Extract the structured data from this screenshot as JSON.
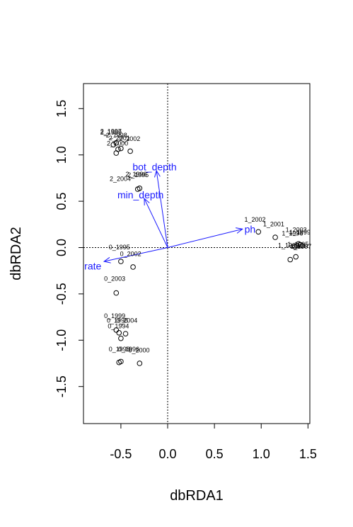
{
  "chart_data": {
    "type": "scatter",
    "title": "",
    "xlabel": "dbRDA1",
    "ylabel": "dbRDA2",
    "xlim": [
      -0.9,
      1.52
    ],
    "ylim": [
      -1.9,
      1.77
    ],
    "xticks": [
      -0.5,
      0.0,
      0.5,
      1.0,
      1.5
    ],
    "yticks": [
      -1.5,
      -1.0,
      -0.5,
      0.0,
      0.5,
      1.0,
      1.5
    ],
    "xtick_labels": [
      "-0.5",
      "0.0",
      "0.5",
      "1.0",
      "1.5"
    ],
    "ytick_labels": [
      "-1.5",
      "-1.0",
      "-0.5",
      "0.0",
      "0.5",
      "1.0",
      "1.5"
    ],
    "reference_lines": {
      "x": 0,
      "y": 0,
      "style": "dotted"
    },
    "vector_color": "#1a1aff",
    "vectors": [
      {
        "label": "bot_depth",
        "x": -0.12,
        "y": 0.83,
        "label_x": -0.14,
        "label_y": 0.87
      },
      {
        "label": "min_depth",
        "x": -0.25,
        "y": 0.53,
        "label_x": -0.29,
        "label_y": 0.57
      },
      {
        "label": "ph",
        "x": 0.8,
        "y": 0.2,
        "label_x": 0.88,
        "label_y": 0.2
      },
      {
        "label": "rate",
        "x": -0.68,
        "y": -0.15,
        "label_x": -0.8,
        "label_y": -0.2
      }
    ],
    "points": [
      {
        "x": -0.55,
        "y": 1.13
      },
      {
        "x": -0.58,
        "y": 1.11
      },
      {
        "x": -0.5,
        "y": 1.07
      },
      {
        "x": -0.53,
        "y": 1.06
      },
      {
        "x": -0.55,
        "y": 1.02
      },
      {
        "x": -0.4,
        "y": 1.04
      },
      {
        "x": -0.3,
        "y": 0.64
      },
      {
        "x": -0.32,
        "y": 0.63
      },
      {
        "x": 0.97,
        "y": 0.17
      },
      {
        "x": 1.15,
        "y": 0.11
      },
      {
        "x": 1.4,
        "y": 0.04
      },
      {
        "x": 1.42,
        "y": 0.03
      },
      {
        "x": 1.38,
        "y": 0.02
      },
      {
        "x": 1.36,
        "y": 0.01
      },
      {
        "x": 1.44,
        "y": 0.02
      },
      {
        "x": 1.31,
        "y": -0.13
      },
      {
        "x": 1.37,
        "y": -0.1
      },
      {
        "x": -0.5,
        "y": -0.15
      },
      {
        "x": -0.37,
        "y": -0.21
      },
      {
        "x": -0.55,
        "y": -0.49
      },
      {
        "x": -0.55,
        "y": -0.89
      },
      {
        "x": -0.52,
        "y": -0.92
      },
      {
        "x": -0.45,
        "y": -0.93
      },
      {
        "x": -0.5,
        "y": -0.98
      },
      {
        "x": -0.52,
        "y": -1.24
      },
      {
        "x": -0.5,
        "y": -1.23
      },
      {
        "x": -0.3,
        "y": -1.25
      }
    ],
    "site_labels": [
      {
        "text": "2_1997",
        "x": -0.72,
        "y": 1.23
      },
      {
        "text": "2_1999",
        "x": -0.72,
        "y": 1.22
      },
      {
        "text": "2_1998",
        "x": -0.66,
        "y": 1.19
      },
      {
        "text": "2_2001",
        "x": -0.63,
        "y": 1.16
      },
      {
        "text": "2_2002",
        "x": -0.52,
        "y": 1.15
      },
      {
        "text": "2_2000",
        "x": -0.65,
        "y": 1.1
      },
      {
        "text": "2_1996",
        "x": -0.45,
        "y": 0.77
      },
      {
        "text": "2_1995",
        "x": -0.43,
        "y": 0.76
      },
      {
        "text": "2_2004",
        "x": -0.62,
        "y": 0.72
      },
      {
        "text": "1_2002",
        "x": 0.82,
        "y": 0.28
      },
      {
        "text": "1_2001",
        "x": 1.02,
        "y": 0.23
      },
      {
        "text": "1_2003",
        "x": 1.26,
        "y": 0.17
      },
      {
        "text": "1_1996",
        "x": 1.22,
        "y": 0.13
      },
      {
        "text": "1_1999",
        "x": 1.3,
        "y": 0.14
      },
      {
        "text": "1_1998",
        "x": 1.18,
        "y": 0.0
      },
      {
        "text": "1_1995",
        "x": 1.28,
        "y": 0.01
      },
      {
        "text": "1_1997",
        "x": 1.31,
        "y": -0.01
      },
      {
        "text": "0_1995",
        "x": -0.63,
        "y": -0.02
      },
      {
        "text": "0_2002",
        "x": -0.51,
        "y": -0.09
      },
      {
        "text": "0_2003",
        "x": -0.68,
        "y": -0.36
      },
      {
        "text": "0_1999",
        "x": -0.68,
        "y": -0.76
      },
      {
        "text": "0_2004",
        "x": -0.55,
        "y": -0.81
      },
      {
        "text": "0_1995",
        "x": -0.65,
        "y": -0.81
      },
      {
        "text": "0_1994",
        "x": -0.64,
        "y": -0.87
      },
      {
        "text": "0_1998",
        "x": -0.63,
        "y": -1.12
      },
      {
        "text": "0_1996",
        "x": -0.53,
        "y": -1.12
      },
      {
        "text": "0_2000",
        "x": -0.42,
        "y": -1.13
      }
    ]
  }
}
